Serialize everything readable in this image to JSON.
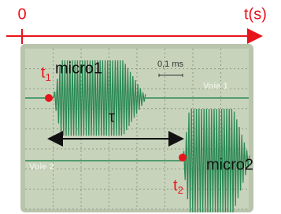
{
  "axis": {
    "origin": "0",
    "label": "t(s)"
  },
  "screen": {
    "scale": "0,1 ms",
    "channel1": "Voie 1",
    "channel2": "Voie 2"
  },
  "annotations": {
    "t1": {
      "base": "t",
      "sub": "1"
    },
    "t2": {
      "base": "t",
      "sub": "2"
    },
    "micro1": "micro1",
    "micro2": "micro2",
    "delay": "τ"
  }
}
